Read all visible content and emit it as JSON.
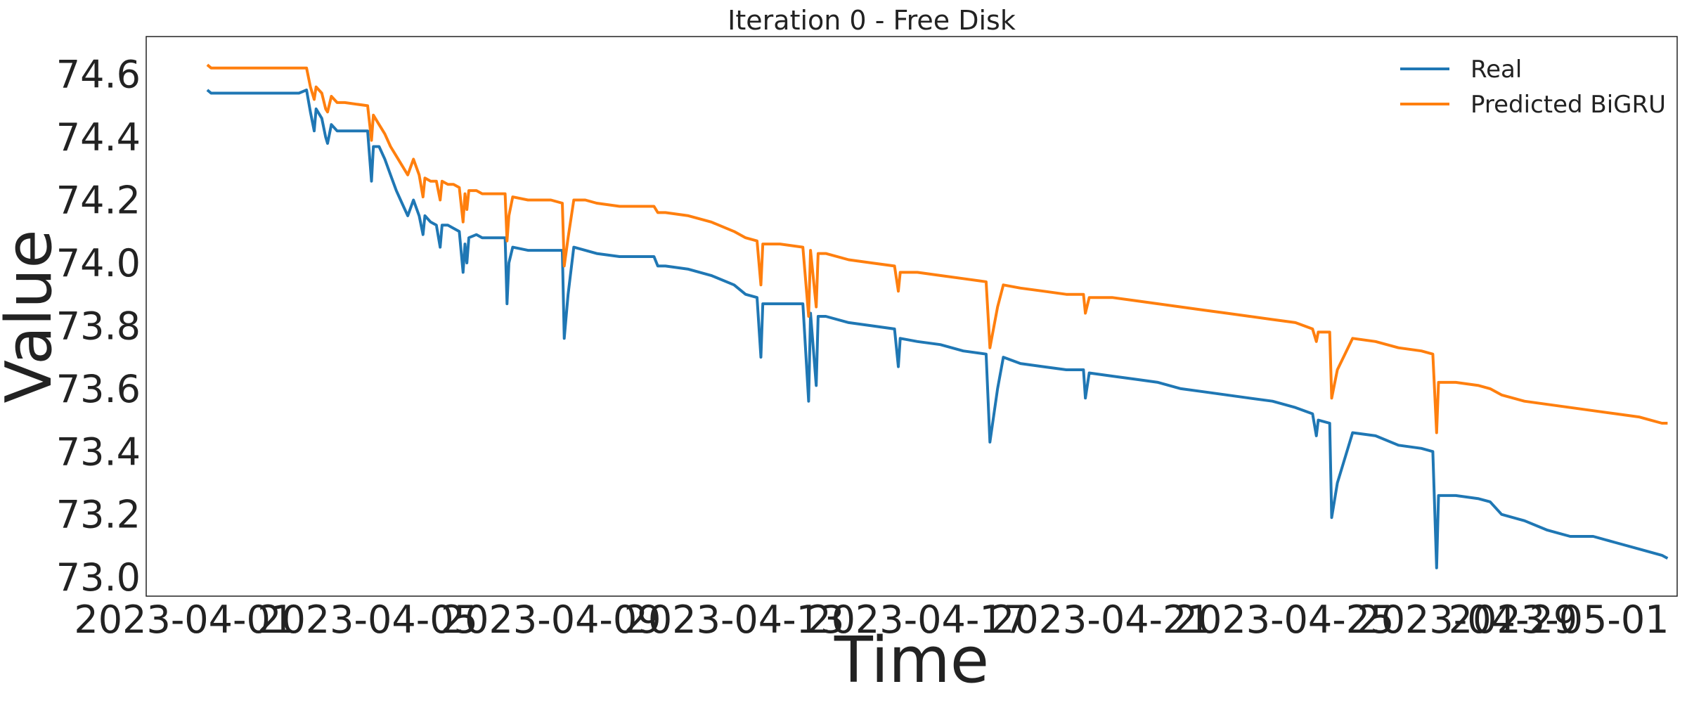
{
  "chart_data": {
    "type": "line",
    "title": "Iteration 0 - Free Disk",
    "xlabel": "Time",
    "ylabel": "Value",
    "xlim": [
      "2023-03-31T04:00",
      "2023-05-03T14:00"
    ],
    "ylim": [
      72.94,
      74.72
    ],
    "x_ticks": [
      "2023-04-01",
      "2023-04-05",
      "2023-04-09",
      "2023-04-13",
      "2023-04-17",
      "2023-04-21",
      "2023-04-25",
      "2023-04-29",
      "2023-05-01"
    ],
    "y_ticks": [
      "73.0",
      "73.2",
      "73.4",
      "73.6",
      "73.8",
      "74.0",
      "74.2",
      "74.4",
      "74.6"
    ],
    "grid": false,
    "legend": {
      "position": "top-right"
    },
    "series": [
      {
        "name": "Real",
        "color": "#1f77b4",
        "points": [
          [
            "2023-04-01T12:00",
            74.55
          ],
          [
            "2023-04-01T14:00",
            74.54
          ],
          [
            "2023-04-02T00:00",
            74.54
          ],
          [
            "2023-04-02T12:00",
            74.54
          ],
          [
            "2023-04-03T00:00",
            74.54
          ],
          [
            "2023-04-03T12:00",
            74.54
          ],
          [
            "2023-04-03T16:00",
            74.55
          ],
          [
            "2023-04-03T18:00",
            74.48
          ],
          [
            "2023-04-03T20:00",
            74.42
          ],
          [
            "2023-04-03T21:00",
            74.49
          ],
          [
            "2023-04-04T00:00",
            74.46
          ],
          [
            "2023-04-04T02:00",
            74.4
          ],
          [
            "2023-04-04T03:00",
            74.38
          ],
          [
            "2023-04-04T05:00",
            74.44
          ],
          [
            "2023-04-04T08:00",
            74.42
          ],
          [
            "2023-04-04T12:00",
            74.42
          ],
          [
            "2023-04-05T00:00",
            74.42
          ],
          [
            "2023-04-05T02:00",
            74.26
          ],
          [
            "2023-04-05T03:00",
            74.37
          ],
          [
            "2023-04-05T06:00",
            74.37
          ],
          [
            "2023-04-05T09:00",
            74.33
          ],
          [
            "2023-04-05T12:00",
            74.28
          ],
          [
            "2023-04-05T15:00",
            74.23
          ],
          [
            "2023-04-05T18:00",
            74.19
          ],
          [
            "2023-04-05T21:00",
            74.15
          ],
          [
            "2023-04-06T00:00",
            74.2
          ],
          [
            "2023-04-06T03:00",
            74.15
          ],
          [
            "2023-04-06T05:00",
            74.09
          ],
          [
            "2023-04-06T06:00",
            74.15
          ],
          [
            "2023-04-06T09:00",
            74.13
          ],
          [
            "2023-04-06T12:00",
            74.12
          ],
          [
            "2023-04-06T14:00",
            74.05
          ],
          [
            "2023-04-06T15:00",
            74.12
          ],
          [
            "2023-04-06T18:00",
            74.12
          ],
          [
            "2023-04-06T21:00",
            74.11
          ],
          [
            "2023-04-07T00:00",
            74.1
          ],
          [
            "2023-04-07T02:00",
            73.97
          ],
          [
            "2023-04-07T03:00",
            74.06
          ],
          [
            "2023-04-07T04:00",
            74.0
          ],
          [
            "2023-04-07T05:00",
            74.08
          ],
          [
            "2023-04-07T09:00",
            74.09
          ],
          [
            "2023-04-07T12:00",
            74.08
          ],
          [
            "2023-04-08T00:00",
            74.08
          ],
          [
            "2023-04-08T01:00",
            73.87
          ],
          [
            "2023-04-08T02:00",
            74.0
          ],
          [
            "2023-04-08T04:00",
            74.05
          ],
          [
            "2023-04-08T12:00",
            74.04
          ],
          [
            "2023-04-09T00:00",
            74.04
          ],
          [
            "2023-04-09T06:00",
            74.04
          ],
          [
            "2023-04-09T07:00",
            73.76
          ],
          [
            "2023-04-09T09:00",
            73.9
          ],
          [
            "2023-04-09T12:00",
            74.05
          ],
          [
            "2023-04-09T18:00",
            74.04
          ],
          [
            "2023-04-10T00:00",
            74.03
          ],
          [
            "2023-04-10T12:00",
            74.02
          ],
          [
            "2023-04-11T00:00",
            74.02
          ],
          [
            "2023-04-11T06:00",
            74.02
          ],
          [
            "2023-04-11T08:00",
            73.99
          ],
          [
            "2023-04-11T12:00",
            73.99
          ],
          [
            "2023-04-12T00:00",
            73.98
          ],
          [
            "2023-04-12T12:00",
            73.96
          ],
          [
            "2023-04-13T00:00",
            73.93
          ],
          [
            "2023-04-13T06:00",
            73.9
          ],
          [
            "2023-04-13T12:00",
            73.89
          ],
          [
            "2023-04-13T14:00",
            73.7
          ],
          [
            "2023-04-13T15:00",
            73.87
          ],
          [
            "2023-04-14T00:00",
            73.87
          ],
          [
            "2023-04-14T12:00",
            73.87
          ],
          [
            "2023-04-14T15:00",
            73.56
          ],
          [
            "2023-04-14T16:00",
            73.84
          ],
          [
            "2023-04-14T19:00",
            73.61
          ],
          [
            "2023-04-14T20:00",
            73.83
          ],
          [
            "2023-04-15T00:00",
            73.83
          ],
          [
            "2023-04-15T12:00",
            73.81
          ],
          [
            "2023-04-16T00:00",
            73.8
          ],
          [
            "2023-04-16T12:00",
            73.79
          ],
          [
            "2023-04-16T14:00",
            73.67
          ],
          [
            "2023-04-16T15:00",
            73.76
          ],
          [
            "2023-04-17T00:00",
            73.75
          ],
          [
            "2023-04-17T12:00",
            73.74
          ],
          [
            "2023-04-18T00:00",
            73.72
          ],
          [
            "2023-04-18T12:00",
            73.71
          ],
          [
            "2023-04-18T14:00",
            73.43
          ],
          [
            "2023-04-18T18:00",
            73.6
          ],
          [
            "2023-04-18T21:00",
            73.7
          ],
          [
            "2023-04-19T06:00",
            73.68
          ],
          [
            "2023-04-19T18:00",
            73.67
          ],
          [
            "2023-04-20T06:00",
            73.66
          ],
          [
            "2023-04-20T15:00",
            73.66
          ],
          [
            "2023-04-20T16:00",
            73.57
          ],
          [
            "2023-04-20T18:00",
            73.65
          ],
          [
            "2023-04-21T06:00",
            73.64
          ],
          [
            "2023-04-21T18:00",
            73.63
          ],
          [
            "2023-04-22T06:00",
            73.62
          ],
          [
            "2023-04-22T18:00",
            73.6
          ],
          [
            "2023-04-23T06:00",
            73.59
          ],
          [
            "2023-04-23T18:00",
            73.58
          ],
          [
            "2023-04-24T06:00",
            73.57
          ],
          [
            "2023-04-24T18:00",
            73.56
          ],
          [
            "2023-04-25T06:00",
            73.54
          ],
          [
            "2023-04-25T15:00",
            73.52
          ],
          [
            "2023-04-25T17:00",
            73.45
          ],
          [
            "2023-04-25T18:00",
            73.5
          ],
          [
            "2023-04-26T00:00",
            73.49
          ],
          [
            "2023-04-26T01:00",
            73.19
          ],
          [
            "2023-04-26T04:00",
            73.3
          ],
          [
            "2023-04-26T12:00",
            73.46
          ],
          [
            "2023-04-27T00:00",
            73.45
          ],
          [
            "2023-04-27T12:00",
            73.42
          ],
          [
            "2023-04-28T00:00",
            73.41
          ],
          [
            "2023-04-28T06:00",
            73.4
          ],
          [
            "2023-04-28T08:00",
            73.03
          ],
          [
            "2023-04-28T09:00",
            73.26
          ],
          [
            "2023-04-28T18:00",
            73.26
          ],
          [
            "2023-04-29T06:00",
            73.25
          ],
          [
            "2023-04-29T12:00",
            73.24
          ],
          [
            "2023-04-29T18:00",
            73.2
          ],
          [
            "2023-04-30T06:00",
            73.18
          ],
          [
            "2023-04-30T18:00",
            73.15
          ],
          [
            "2023-05-01T06:00",
            73.13
          ],
          [
            "2023-05-01T18:00",
            73.13
          ],
          [
            "2023-05-02T06:00",
            73.11
          ],
          [
            "2023-05-02T18:00",
            73.09
          ],
          [
            "2023-05-03T00:00",
            73.08
          ],
          [
            "2023-05-03T06:00",
            73.07
          ],
          [
            "2023-05-03T09:00",
            73.06
          ]
        ]
      },
      {
        "name": "Predicted BiGRU",
        "color": "#ff7f0e",
        "points": [
          [
            "2023-04-01T12:00",
            74.63
          ],
          [
            "2023-04-01T14:00",
            74.62
          ],
          [
            "2023-04-02T00:00",
            74.62
          ],
          [
            "2023-04-02T12:00",
            74.62
          ],
          [
            "2023-04-03T00:00",
            74.62
          ],
          [
            "2023-04-03T12:00",
            74.62
          ],
          [
            "2023-04-03T16:00",
            74.62
          ],
          [
            "2023-04-03T18:00",
            74.56
          ],
          [
            "2023-04-03T20:00",
            74.52
          ],
          [
            "2023-04-03T21:00",
            74.56
          ],
          [
            "2023-04-04T00:00",
            74.54
          ],
          [
            "2023-04-04T02:00",
            74.49
          ],
          [
            "2023-04-04T03:00",
            74.48
          ],
          [
            "2023-04-04T05:00",
            74.53
          ],
          [
            "2023-04-04T08:00",
            74.51
          ],
          [
            "2023-04-04T12:00",
            74.51
          ],
          [
            "2023-04-05T00:00",
            74.5
          ],
          [
            "2023-04-05T02:00",
            74.39
          ],
          [
            "2023-04-05T03:00",
            74.47
          ],
          [
            "2023-04-05T06:00",
            74.44
          ],
          [
            "2023-04-05T09:00",
            74.41
          ],
          [
            "2023-04-05T12:00",
            74.37
          ],
          [
            "2023-04-05T15:00",
            74.34
          ],
          [
            "2023-04-05T18:00",
            74.31
          ],
          [
            "2023-04-05T21:00",
            74.28
          ],
          [
            "2023-04-06T00:00",
            74.33
          ],
          [
            "2023-04-06T03:00",
            74.28
          ],
          [
            "2023-04-06T05:00",
            74.21
          ],
          [
            "2023-04-06T06:00",
            74.27
          ],
          [
            "2023-04-06T09:00",
            74.26
          ],
          [
            "2023-04-06T12:00",
            74.26
          ],
          [
            "2023-04-06T14:00",
            74.2
          ],
          [
            "2023-04-06T15:00",
            74.26
          ],
          [
            "2023-04-06T18:00",
            74.25
          ],
          [
            "2023-04-06T21:00",
            74.25
          ],
          [
            "2023-04-07T00:00",
            74.24
          ],
          [
            "2023-04-07T02:00",
            74.13
          ],
          [
            "2023-04-07T03:00",
            74.22
          ],
          [
            "2023-04-07T04:00",
            74.17
          ],
          [
            "2023-04-07T05:00",
            74.23
          ],
          [
            "2023-04-07T09:00",
            74.23
          ],
          [
            "2023-04-07T12:00",
            74.22
          ],
          [
            "2023-04-08T00:00",
            74.22
          ],
          [
            "2023-04-08T01:00",
            74.07
          ],
          [
            "2023-04-08T02:00",
            74.15
          ],
          [
            "2023-04-08T04:00",
            74.21
          ],
          [
            "2023-04-08T12:00",
            74.2
          ],
          [
            "2023-04-09T00:00",
            74.2
          ],
          [
            "2023-04-09T06:00",
            74.19
          ],
          [
            "2023-04-09T07:00",
            73.99
          ],
          [
            "2023-04-09T09:00",
            74.08
          ],
          [
            "2023-04-09T12:00",
            74.2
          ],
          [
            "2023-04-09T18:00",
            74.2
          ],
          [
            "2023-04-10T00:00",
            74.19
          ],
          [
            "2023-04-10T12:00",
            74.18
          ],
          [
            "2023-04-11T00:00",
            74.18
          ],
          [
            "2023-04-11T06:00",
            74.18
          ],
          [
            "2023-04-11T08:00",
            74.16
          ],
          [
            "2023-04-11T12:00",
            74.16
          ],
          [
            "2023-04-12T00:00",
            74.15
          ],
          [
            "2023-04-12T12:00",
            74.13
          ],
          [
            "2023-04-13T00:00",
            74.1
          ],
          [
            "2023-04-13T06:00",
            74.08
          ],
          [
            "2023-04-13T12:00",
            74.07
          ],
          [
            "2023-04-13T14:00",
            73.93
          ],
          [
            "2023-04-13T15:00",
            74.06
          ],
          [
            "2023-04-14T00:00",
            74.06
          ],
          [
            "2023-04-14T12:00",
            74.05
          ],
          [
            "2023-04-14T15:00",
            73.83
          ],
          [
            "2023-04-14T16:00",
            74.04
          ],
          [
            "2023-04-14T19:00",
            73.86
          ],
          [
            "2023-04-14T20:00",
            74.03
          ],
          [
            "2023-04-15T00:00",
            74.03
          ],
          [
            "2023-04-15T12:00",
            74.01
          ],
          [
            "2023-04-16T00:00",
            74.0
          ],
          [
            "2023-04-16T12:00",
            73.99
          ],
          [
            "2023-04-16T14:00",
            73.91
          ],
          [
            "2023-04-16T15:00",
            73.97
          ],
          [
            "2023-04-17T00:00",
            73.97
          ],
          [
            "2023-04-17T12:00",
            73.96
          ],
          [
            "2023-04-18T00:00",
            73.95
          ],
          [
            "2023-04-18T12:00",
            73.94
          ],
          [
            "2023-04-18T14:00",
            73.73
          ],
          [
            "2023-04-18T18:00",
            73.86
          ],
          [
            "2023-04-18T21:00",
            73.93
          ],
          [
            "2023-04-19T06:00",
            73.92
          ],
          [
            "2023-04-19T18:00",
            73.91
          ],
          [
            "2023-04-20T06:00",
            73.9
          ],
          [
            "2023-04-20T15:00",
            73.9
          ],
          [
            "2023-04-20T16:00",
            73.84
          ],
          [
            "2023-04-20T18:00",
            73.89
          ],
          [
            "2023-04-21T06:00",
            73.89
          ],
          [
            "2023-04-21T18:00",
            73.88
          ],
          [
            "2023-04-22T06:00",
            73.87
          ],
          [
            "2023-04-22T18:00",
            73.86
          ],
          [
            "2023-04-23T06:00",
            73.85
          ],
          [
            "2023-04-23T18:00",
            73.84
          ],
          [
            "2023-04-24T06:00",
            73.83
          ],
          [
            "2023-04-24T18:00",
            73.82
          ],
          [
            "2023-04-25T06:00",
            73.81
          ],
          [
            "2023-04-25T15:00",
            73.79
          ],
          [
            "2023-04-25T17:00",
            73.75
          ],
          [
            "2023-04-25T18:00",
            73.78
          ],
          [
            "2023-04-26T00:00",
            73.78
          ],
          [
            "2023-04-26T01:00",
            73.57
          ],
          [
            "2023-04-26T04:00",
            73.66
          ],
          [
            "2023-04-26T12:00",
            73.76
          ],
          [
            "2023-04-27T00:00",
            73.75
          ],
          [
            "2023-04-27T12:00",
            73.73
          ],
          [
            "2023-04-28T00:00",
            73.72
          ],
          [
            "2023-04-28T06:00",
            73.71
          ],
          [
            "2023-04-28T08:00",
            73.46
          ],
          [
            "2023-04-28T09:00",
            73.62
          ],
          [
            "2023-04-28T18:00",
            73.62
          ],
          [
            "2023-04-29T06:00",
            73.61
          ],
          [
            "2023-04-29T12:00",
            73.6
          ],
          [
            "2023-04-29T18:00",
            73.58
          ],
          [
            "2023-04-30T06:00",
            73.56
          ],
          [
            "2023-04-30T18:00",
            73.55
          ],
          [
            "2023-05-01T06:00",
            73.54
          ],
          [
            "2023-05-01T18:00",
            73.53
          ],
          [
            "2023-05-02T06:00",
            73.52
          ],
          [
            "2023-05-02T18:00",
            73.51
          ],
          [
            "2023-05-03T00:00",
            73.5
          ],
          [
            "2023-05-03T06:00",
            73.49
          ],
          [
            "2023-05-03T09:00",
            73.49
          ]
        ]
      }
    ]
  }
}
